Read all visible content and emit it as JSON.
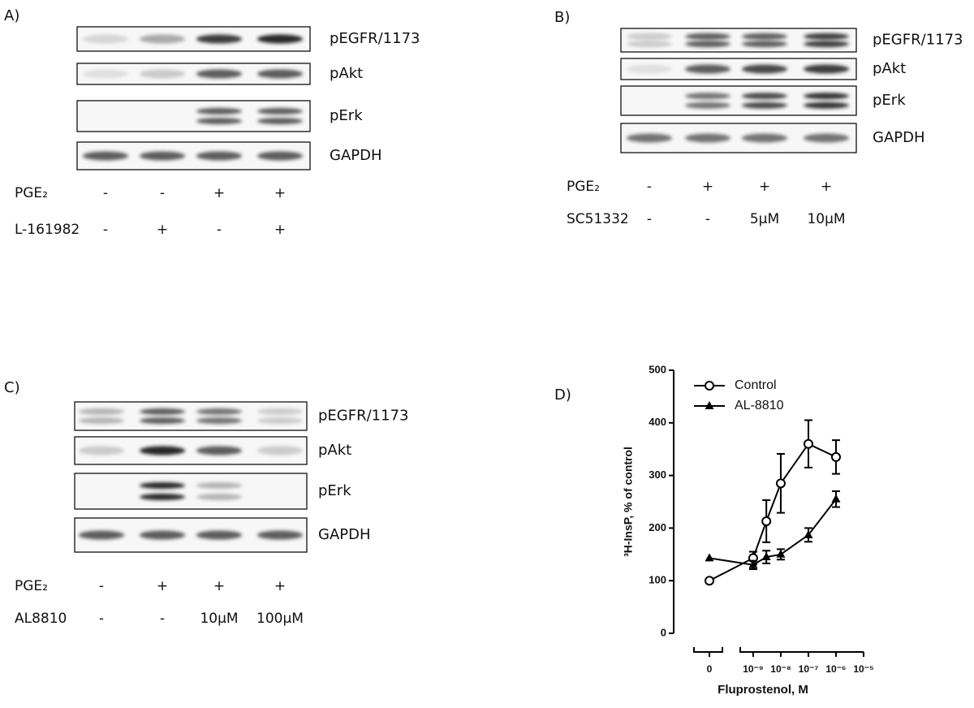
{
  "panels": [
    {
      "label": "A)",
      "rows": [
        "pEGFR/1173",
        "pAkt",
        "pErk",
        "GAPDH"
      ],
      "conditions": [
        {
          "name": "PGE₂",
          "values": [
            "-",
            "-",
            "+",
            "+"
          ]
        },
        {
          "name": "L-161982",
          "values": [
            "-",
            "+",
            "-",
            "+"
          ]
        }
      ]
    },
    {
      "label": "B)",
      "rows": [
        "pEGFR/1173",
        "pAkt",
        "pErk",
        "GAPDH"
      ],
      "conditions": [
        {
          "name": "PGE₂",
          "values": [
            "-",
            "+",
            "+",
            "+"
          ]
        },
        {
          "name": "SC51332",
          "values": [
            "-",
            "-",
            "5μM",
            "10μM"
          ]
        }
      ]
    },
    {
      "label": "C)",
      "rows": [
        "pEGFR/1173",
        "pAkt",
        "pErk",
        "GAPDH"
      ],
      "conditions": [
        {
          "name": "PGE₂",
          "values": [
            "-",
            "+",
            "+",
            "+"
          ]
        },
        {
          "name": "AL8810",
          "values": [
            "-",
            "-",
            "10μM",
            "100μM"
          ]
        }
      ]
    }
  ],
  "chart_data": {
    "type": "line",
    "panel_label": "D)",
    "x_label": "Fluprostenol, M",
    "y_label": "³H-InsP, % of control",
    "x_log": true,
    "xlim": [
      3.4e-10,
      1e-05
    ],
    "xticks": [
      0,
      {
        "value": 1e-09,
        "label": "10⁻⁹"
      },
      {
        "value": 1e-08,
        "label": "10⁻⁸"
      },
      {
        "value": 1e-07,
        "label": "10⁻⁷"
      },
      {
        "value": 1e-06,
        "label": "10⁻⁶"
      },
      {
        "value": 1e-05,
        "label": "10⁻⁵"
      }
    ],
    "ylim": [
      0,
      500
    ],
    "yticks": [
      0,
      100,
      200,
      300,
      400,
      500
    ],
    "series": [
      {
        "name": "Control",
        "color": "#000000",
        "marker": "open-circle",
        "x": [
          0,
          1e-09,
          3e-09,
          1e-08,
          1e-07,
          1e-06
        ],
        "values": [
          100,
          143,
          213,
          285,
          360,
          335
        ],
        "errors": [
          null,
          12,
          40,
          56,
          45,
          32
        ]
      },
      {
        "name": "AL-8810",
        "color": "#000000",
        "marker": "triangle",
        "x": [
          0,
          1e-09,
          3e-09,
          1e-08,
          1e-07,
          1e-06
        ],
        "values": [
          143,
          130,
          145,
          150,
          187,
          255
        ],
        "errors": [
          null,
          8,
          12,
          10,
          13,
          15
        ]
      }
    ]
  }
}
